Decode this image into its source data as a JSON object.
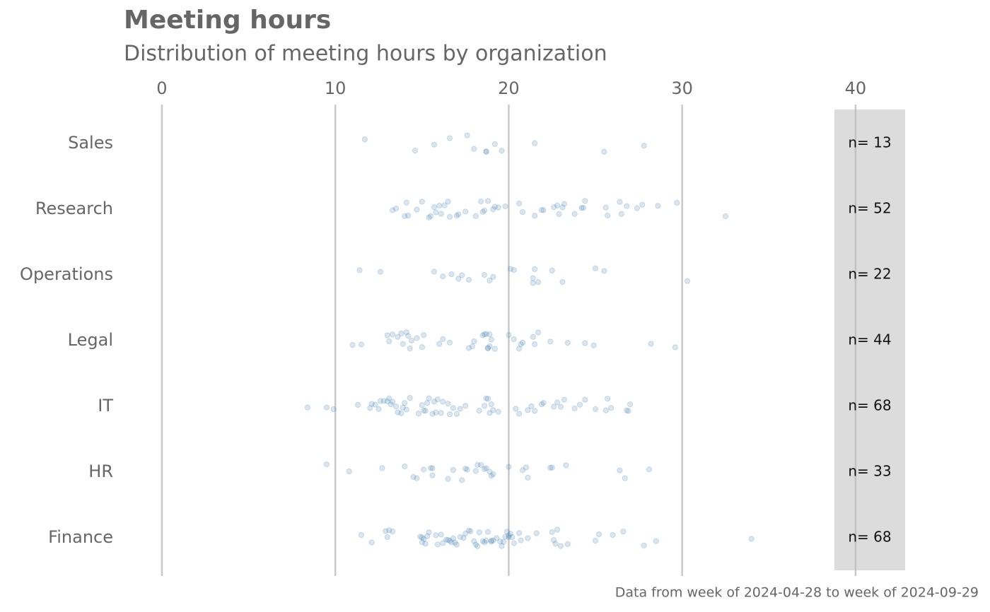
{
  "chart_data": {
    "type": "strip",
    "title": "Meeting hours",
    "subtitle": "Distribution of meeting hours by organization",
    "caption": "Data from week of 2024-04-28 to week of 2024-09-29",
    "categories": [
      "Sales",
      "Research",
      "Operations",
      "Legal",
      "IT",
      "HR",
      "Finance"
    ],
    "count_labels": [
      "n= 13",
      "n= 52",
      "n= 22",
      "n= 44",
      "n= 68",
      "n= 33",
      "n= 68"
    ],
    "color": "#4682b4",
    "values": [
      [
        11.7,
        14.6,
        15.7,
        16.6,
        17.6,
        18.0,
        18.7,
        18.7,
        19.2,
        19.6,
        21.5,
        25.5,
        27.8
      ],
      [
        13.5,
        13.3,
        14.0,
        14.1,
        14.2,
        14.7,
        15.0,
        29.7,
        15.4,
        15.5,
        15.7,
        15.8,
        16.0,
        16.1,
        16.3,
        16.5,
        16.6,
        17.0,
        17.1,
        17.5,
        18.1,
        18.4,
        18.5,
        18.6,
        18.8,
        32.5,
        19.1,
        19.2,
        19.4,
        19.8,
        20.6,
        20.8,
        21.5,
        21.9,
        22.0,
        22.6,
        22.8,
        22.9,
        23.1,
        23.2,
        23.8,
        24.2,
        24.3,
        24.4,
        25.6,
        25.7,
        26.4,
        26.5,
        26.8,
        27.4,
        27.7,
        28.6
      ],
      [
        11.4,
        12.6,
        15.7,
        16.2,
        16.7,
        17.1,
        17.3,
        17.7,
        18.6,
        18.9,
        19.1,
        20.1,
        20.3,
        21.4,
        21.4,
        21.5,
        21.7,
        22.5,
        23.1,
        25.0,
        25.5,
        30.3
      ],
      [
        11.0,
        11.5,
        13.0,
        13.1,
        13.3,
        13.6,
        13.8,
        13.9,
        14.1,
        14.2,
        14.3,
        14.4,
        14.7,
        15.0,
        15.1,
        16.0,
        16.2,
        16.6,
        17.7,
        17.9,
        18.0,
        18.5,
        18.7,
        18.8,
        18.8,
        18.9,
        18.9,
        19.0,
        19.2,
        20.0,
        20.3,
        20.6,
        20.8,
        21.4,
        21.5,
        21.7,
        22.4,
        23.4,
        24.4,
        24.9,
        28.2,
        29.6,
        18.6,
        20.7
      ],
      [
        8.4,
        9.5,
        9.9,
        11.3,
        12.0,
        12.1,
        12.3,
        12.5,
        12.6,
        12.8,
        13.0,
        13.1,
        13.2,
        13.3,
        13.5,
        13.6,
        13.8,
        13.9,
        14.0,
        14.1,
        14.3,
        14.8,
        15.0,
        15.2,
        15.3,
        15.4,
        15.6,
        15.7,
        15.8,
        15.9,
        16.2,
        16.5,
        16.6,
        16.8,
        17.0,
        17.2,
        17.5,
        18.3,
        18.6,
        18.7,
        18.8,
        18.9,
        19.0,
        19.1,
        19.4,
        20.4,
        20.6,
        21.1,
        21.3,
        21.5,
        21.9,
        22.0,
        22.6,
        22.8,
        23.0,
        23.2,
        23.8,
        24.1,
        24.4,
        25.0,
        25.6,
        25.7,
        25.9,
        26.8,
        26.9,
        27.0,
        15.1,
        16.1
      ],
      [
        9.5,
        10.8,
        12.7,
        14.0,
        14.5,
        14.7,
        15.1,
        15.5,
        15.6,
        16.5,
        16.8,
        17.3,
        17.5,
        17.6,
        18.1,
        18.4,
        18.6,
        18.7,
        18.9,
        19.0,
        19.1,
        20.0,
        20.8,
        21.0,
        21.1,
        22.4,
        22.5,
        23.3,
        26.4,
        26.7,
        28.1,
        18.2,
        15.6
      ],
      [
        11.5,
        12.1,
        12.9,
        13.0,
        13.1,
        13.3,
        14.9,
        15.0,
        15.1,
        15.2,
        15.3,
        15.4,
        15.8,
        15.9,
        16.1,
        16.2,
        16.4,
        16.6,
        16.7,
        16.8,
        16.9,
        17.0,
        17.2,
        17.4,
        17.5,
        17.7,
        17.8,
        18.0,
        18.1,
        18.3,
        18.5,
        18.6,
        18.7,
        18.8,
        19.0,
        19.1,
        19.3,
        19.5,
        19.6,
        19.7,
        19.8,
        19.9,
        20.0,
        20.1,
        20.2,
        20.3,
        20.6,
        20.7,
        21.1,
        21.6,
        22.5,
        22.6,
        22.7,
        22.8,
        23.0,
        23.4,
        25.0,
        25.2,
        26.0,
        26.6,
        27.8,
        28.5,
        34.0,
        15.0,
        16.5,
        18.2,
        19.0,
        20.0
      ]
    ],
    "xlim": [
      -2.2,
      42.9
    ],
    "xticks": [
      0,
      10,
      20,
      30,
      40
    ],
    "grid": true
  }
}
